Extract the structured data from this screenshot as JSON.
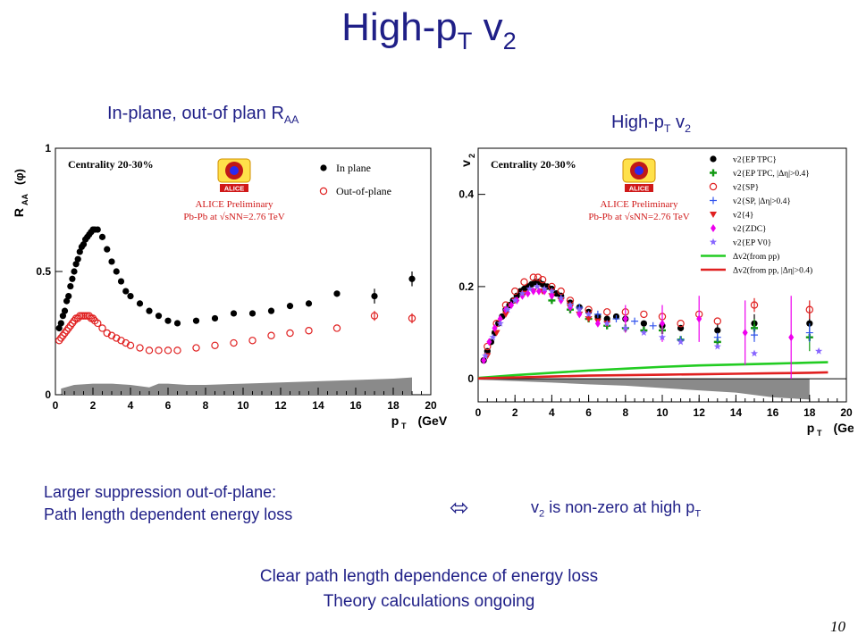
{
  "slide": {
    "title_main": "High-p",
    "title_sub": "T",
    "title_end": " v",
    "title_end_sub": "2",
    "left_caption": "In-plane, out-of plan R",
    "left_caption_sub": "AA",
    "right_caption": "High-p",
    "right_caption_sub": "T",
    "right_caption_mid": " v",
    "right_caption_end_sub": "2",
    "bullet_left_line1": "Larger suppression out-of-plane:",
    "bullet_left_line2": "Path length dependent energy loss",
    "arrow_symbol": "⬄",
    "bullet_right_pre": "v",
    "bullet_right_sub1": "2",
    "bullet_right_mid": " is non-zero at high p",
    "bullet_right_sub2": "T",
    "conclusion_line1": "Clear path length dependence of energy loss",
    "conclusion_line2": "Theory calculations ongoing",
    "page_number": "10"
  },
  "colors": {
    "title": "#1f1f87",
    "red": "#e02020",
    "black": "#000000",
    "green": "#22cc22",
    "magenta": "#ee00ee",
    "purple": "#8866ff",
    "blue": "#3355ee",
    "band": "#8a8a8a"
  },
  "chart_data": [
    {
      "type": "scatter",
      "xlabel": "p_T (GeV/c)",
      "ylabel": "R_AA(φ)",
      "xlim": [
        0,
        20
      ],
      "ylim": [
        0,
        1
      ],
      "xticks": [
        "0",
        "2",
        "4",
        "6",
        "8",
        "10",
        "12",
        "14",
        "16",
        "18",
        "20"
      ],
      "yticks": [
        "0",
        "0.5",
        "1"
      ],
      "annotations": {
        "centrality": "Centrality 20-30%",
        "logo": "ALICE",
        "prelim": "ALICE Preliminary",
        "system": "Pb-Pb at √sNN=2.76 TeV"
      },
      "series": [
        {
          "name": "In plane",
          "color": "#000000",
          "marker": "filled-circle",
          "x": [
            0.2,
            0.3,
            0.4,
            0.5,
            0.6,
            0.7,
            0.8,
            0.9,
            1.0,
            1.1,
            1.2,
            1.3,
            1.4,
            1.5,
            1.6,
            1.7,
            1.8,
            1.9,
            2.0,
            2.1,
            2.25,
            2.5,
            2.75,
            3.0,
            3.25,
            3.5,
            3.75,
            4.0,
            4.5,
            5.0,
            5.5,
            6.0,
            6.5,
            7.5,
            8.5,
            9.5,
            10.5,
            11.5,
            12.5,
            13.5,
            15.0,
            17.0,
            19.0
          ],
          "y": [
            0.27,
            0.29,
            0.32,
            0.34,
            0.38,
            0.4,
            0.44,
            0.47,
            0.5,
            0.53,
            0.55,
            0.58,
            0.6,
            0.61,
            0.63,
            0.64,
            0.65,
            0.66,
            0.67,
            0.67,
            0.67,
            0.64,
            0.59,
            0.54,
            0.5,
            0.46,
            0.42,
            0.4,
            0.37,
            0.34,
            0.32,
            0.3,
            0.29,
            0.3,
            0.31,
            0.33,
            0.33,
            0.34,
            0.36,
            0.37,
            0.41,
            0.4,
            0.47
          ],
          "yerr": [
            0,
            0,
            0,
            0,
            0,
            0,
            0,
            0,
            0,
            0,
            0,
            0,
            0,
            0,
            0,
            0,
            0,
            0,
            0,
            0,
            0,
            0,
            0,
            0,
            0,
            0,
            0,
            0,
            0,
            0,
            0,
            0,
            0,
            0,
            0,
            0,
            0,
            0,
            0,
            0,
            0,
            0.03,
            0.03
          ]
        },
        {
          "name": "Out-of-plane",
          "color": "#e02020",
          "marker": "open-circle",
          "x": [
            0.2,
            0.3,
            0.4,
            0.5,
            0.6,
            0.7,
            0.8,
            0.9,
            1.0,
            1.1,
            1.2,
            1.3,
            1.4,
            1.5,
            1.6,
            1.7,
            1.8,
            1.9,
            2.0,
            2.1,
            2.25,
            2.5,
            2.75,
            3.0,
            3.25,
            3.5,
            3.75,
            4.0,
            4.5,
            5.0,
            5.5,
            6.0,
            6.5,
            7.5,
            8.5,
            9.5,
            10.5,
            11.5,
            12.5,
            13.5,
            15.0,
            17.0,
            19.0
          ],
          "y": [
            0.22,
            0.23,
            0.24,
            0.25,
            0.26,
            0.27,
            0.28,
            0.29,
            0.3,
            0.31,
            0.31,
            0.32,
            0.32,
            0.32,
            0.32,
            0.32,
            0.32,
            0.31,
            0.31,
            0.3,
            0.29,
            0.27,
            0.25,
            0.24,
            0.23,
            0.22,
            0.21,
            0.2,
            0.19,
            0.18,
            0.18,
            0.18,
            0.18,
            0.19,
            0.2,
            0.21,
            0.22,
            0.24,
            0.25,
            0.26,
            0.27,
            0.32,
            0.31
          ],
          "yerr": [
            0,
            0,
            0,
            0,
            0,
            0,
            0,
            0,
            0,
            0,
            0,
            0,
            0,
            0,
            0,
            0,
            0,
            0,
            0,
            0,
            0,
            0,
            0,
            0,
            0,
            0,
            0,
            0,
            0,
            0,
            0,
            0,
            0,
            0,
            0,
            0,
            0,
            0,
            0,
            0,
            0,
            0.02,
            0.02
          ]
        }
      ],
      "systematic_band": {
        "x": [
          0.3,
          1,
          2,
          3,
          4,
          4.5,
          5,
          5.5,
          6,
          7,
          8,
          10,
          12,
          14,
          16,
          18,
          19
        ],
        "top": [
          0.025,
          0.04,
          0.045,
          0.045,
          0.04,
          0.035,
          0.03,
          0.045,
          0.045,
          0.04,
          0.04,
          0.045,
          0.05,
          0.055,
          0.06,
          0.065,
          0.07
        ],
        "color": "#8a8a8a"
      }
    },
    {
      "type": "scatter",
      "xlabel": "p_T (GeV/c)",
      "ylabel": "v_2",
      "xlim": [
        0,
        20
      ],
      "ylim": [
        -0.05,
        0.5
      ],
      "xticks": [
        "0",
        "2",
        "4",
        "6",
        "8",
        "10",
        "12",
        "14",
        "16",
        "18",
        "20"
      ],
      "yticks": [
        "0",
        "0.2",
        "0.4"
      ],
      "annotations": {
        "centrality": "Centrality 20-30%",
        "logo": "ALICE",
        "prelim": "ALICE Preliminary",
        "system": "Pb-Pb at √sNN=2.76 TeV"
      },
      "legend": [
        "v2{EP TPC}",
        "v2{EP TPC, |Δη|>0.4}",
        "v2{SP}",
        "v2{SP, |Δη|>0.4}",
        "v2{4}",
        "v2{ZDC}",
        "v2{EP V0}",
        "Δv2(from pp)",
        "Δv2(from pp, |Δη|>0.4)"
      ],
      "series": [
        {
          "name": "v2{EP TPC}",
          "color": "#000000",
          "marker": "filled-circle",
          "x": [
            0.3,
            0.5,
            0.7,
            0.9,
            1.1,
            1.3,
            1.5,
            1.7,
            1.9,
            2.1,
            2.3,
            2.5,
            2.7,
            2.9,
            3.1,
            3.3,
            3.5,
            3.75,
            4.0,
            4.25,
            4.5,
            5.0,
            5.5,
            6.0,
            6.5,
            7.0,
            7.5,
            8.0,
            9.0,
            10.0,
            11.0,
            13.0,
            15.0,
            18.0
          ],
          "y": [
            0.04,
            0.06,
            0.08,
            0.1,
            0.12,
            0.135,
            0.15,
            0.16,
            0.17,
            0.18,
            0.19,
            0.195,
            0.2,
            0.205,
            0.21,
            0.21,
            0.205,
            0.2,
            0.195,
            0.185,
            0.18,
            0.165,
            0.155,
            0.145,
            0.135,
            0.13,
            0.135,
            0.13,
            0.12,
            0.115,
            0.11,
            0.105,
            0.12,
            0.12
          ],
          "yerr": [
            0,
            0,
            0,
            0,
            0,
            0,
            0,
            0,
            0,
            0,
            0,
            0,
            0,
            0,
            0,
            0,
            0,
            0,
            0,
            0,
            0,
            0,
            0,
            0,
            0,
            0,
            0,
            0,
            0,
            0,
            0,
            0.015,
            0.02,
            0.03
          ]
        },
        {
          "name": "v2{EP TPC, |Δη|>0.4}",
          "color": "#119911",
          "marker": "plus",
          "x": [
            4.0,
            5.0,
            6.0,
            7.0,
            8.0,
            9.0,
            10.0,
            11.0,
            13.0,
            15.0,
            18.0
          ],
          "y": [
            0.17,
            0.15,
            0.13,
            0.115,
            0.11,
            0.105,
            0.105,
            0.085,
            0.08,
            0.11,
            0.09
          ],
          "yerr": [
            0,
            0,
            0,
            0,
            0,
            0,
            0,
            0,
            0.01,
            0.02,
            0.03
          ]
        },
        {
          "name": "v2{SP}",
          "color": "#e02020",
          "marker": "open-circle",
          "x": [
            0.5,
            1.0,
            1.5,
            2.0,
            2.5,
            3.0,
            3.25,
            3.5,
            4.0,
            4.5,
            5.0,
            6.0,
            7.0,
            8.0,
            9.0,
            10.0,
            11.0,
            12.0,
            13.0,
            15.0,
            18.0
          ],
          "y": [
            0.07,
            0.12,
            0.16,
            0.19,
            0.21,
            0.22,
            0.22,
            0.215,
            0.2,
            0.19,
            0.17,
            0.15,
            0.145,
            0.145,
            0.14,
            0.135,
            0.12,
            0.14,
            0.125,
            0.16,
            0.15
          ],
          "yerr": [
            0,
            0,
            0,
            0,
            0,
            0,
            0,
            0,
            0,
            0,
            0,
            0,
            0,
            0,
            0,
            0,
            0,
            0,
            0,
            0.015,
            0.02
          ]
        },
        {
          "name": "v2{SP, |Δη|>0.4}",
          "color": "#3355ee",
          "marker": "open-cross",
          "x": [
            4.5,
            5.5,
            6.5,
            7.5,
            8.5,
            9.5,
            11.0,
            13.0,
            15.0,
            18.0
          ],
          "y": [
            0.175,
            0.155,
            0.14,
            0.13,
            0.125,
            0.115,
            0.085,
            0.09,
            0.095,
            0.1
          ],
          "yerr": [
            0,
            0,
            0,
            0,
            0,
            0,
            0,
            0.01,
            0.015,
            0.02
          ]
        },
        {
          "name": "v2{4}",
          "color": "#e02020",
          "marker": "down-triangle",
          "x": [
            0.5,
            1.0,
            1.5,
            2.0,
            2.5,
            3.0,
            3.5,
            4.0,
            4.5,
            5.0,
            5.5,
            6.0,
            6.5,
            7.0
          ],
          "y": [
            0.05,
            0.1,
            0.14,
            0.17,
            0.185,
            0.19,
            0.19,
            0.18,
            0.17,
            0.155,
            0.14,
            0.13,
            0.125,
            0.12
          ],
          "yerr": [
            0,
            0,
            0,
            0,
            0,
            0,
            0,
            0,
            0,
            0,
            0,
            0,
            0,
            0
          ]
        },
        {
          "name": "v2{ZDC}",
          "color": "#ee00ee",
          "marker": "diamond",
          "x": [
            0.3,
            0.6,
            0.9,
            1.2,
            1.5,
            1.8,
            2.1,
            2.4,
            2.7,
            3.0,
            3.3,
            3.6,
            4.0,
            4.5,
            5.0,
            5.5,
            6.5,
            8.0,
            10.0,
            12.0,
            14.5,
            17.0
          ],
          "y": [
            0.04,
            0.08,
            0.11,
            0.13,
            0.15,
            0.16,
            0.17,
            0.18,
            0.185,
            0.19,
            0.19,
            0.19,
            0.18,
            0.17,
            0.155,
            0.14,
            0.12,
            0.13,
            0.12,
            0.13,
            0.1,
            0.09
          ],
          "yerr": [
            0,
            0,
            0,
            0,
            0,
            0,
            0,
            0,
            0,
            0,
            0,
            0,
            0,
            0,
            0,
            0,
            0,
            0.03,
            0.04,
            0.05,
            0.07,
            0.09
          ]
        },
        {
          "name": "v2{EP V0}",
          "color": "#8866ff",
          "marker": "star",
          "x": [
            0.4,
            0.8,
            1.2,
            1.6,
            2.0,
            2.4,
            2.8,
            3.2,
            3.6,
            4.0,
            4.5,
            5.0,
            5.5,
            6.0,
            7.0,
            8.0,
            9.0,
            10.0,
            11.0,
            13.0,
            15.0,
            18.5
          ],
          "y": [
            0.05,
            0.09,
            0.12,
            0.15,
            0.17,
            0.185,
            0.195,
            0.2,
            0.195,
            0.19,
            0.175,
            0.16,
            0.15,
            0.14,
            0.12,
            0.11,
            0.1,
            0.09,
            0.08,
            0.07,
            0.055,
            0.06
          ],
          "yerr": [
            0,
            0,
            0,
            0,
            0,
            0,
            0,
            0,
            0,
            0,
            0,
            0,
            0,
            0,
            0,
            0,
            0,
            0,
            0,
            0,
            0,
            0
          ]
        }
      ],
      "curves": [
        {
          "name": "Δv2(from pp)",
          "color": "#22cc22",
          "x": [
            0,
            2,
            4,
            6,
            8,
            10,
            12,
            14,
            16,
            18,
            19
          ],
          "y": [
            0.002,
            0.008,
            0.013,
            0.018,
            0.022,
            0.026,
            0.029,
            0.031,
            0.033,
            0.035,
            0.036
          ]
        },
        {
          "name": "Δv2(from pp, |Δη|>0.4)",
          "color": "#e02020",
          "x": [
            0,
            2,
            4,
            6,
            8,
            10,
            12,
            14,
            16,
            18,
            19
          ],
          "y": [
            0.001,
            0.003,
            0.005,
            0.007,
            0.008,
            0.009,
            0.01,
            0.011,
            0.012,
            0.013,
            0.014
          ]
        }
      ],
      "systematic_band": {
        "x": [
          0,
          2,
          4,
          6,
          8,
          10,
          12,
          14,
          16,
          18
        ],
        "low": [
          -0.002,
          -0.005,
          -0.008,
          -0.012,
          -0.015,
          -0.02,
          -0.025,
          -0.03,
          -0.04,
          -0.045
        ],
        "color": "#8a8a8a"
      }
    }
  ]
}
